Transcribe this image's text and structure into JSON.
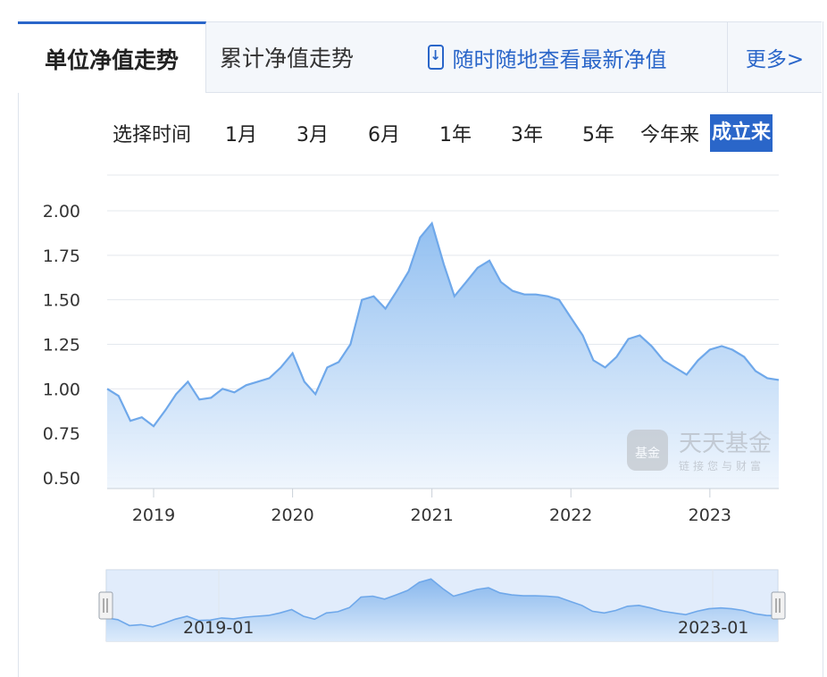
{
  "tabs": {
    "unit_nav": "单位净值走势",
    "cumulative_nav": "累计净值走势",
    "app_promo": "随时随地查看最新净值",
    "more": "更多>"
  },
  "time_range": {
    "label": "选择时间",
    "options": [
      "1月",
      "3月",
      "6月",
      "1年",
      "3年",
      "5年",
      "今年来",
      "成立来"
    ],
    "selected": "成立来"
  },
  "watermark": {
    "name": "天天基金",
    "slogan": "链接您与财富",
    "logo_text": "基金"
  },
  "colors": {
    "accent": "#2a66c9",
    "line": "#6fa8ea",
    "fill_top": "#8cbcf0",
    "fill_bottom": "#eef5fd",
    "grid": "#e4e8ee"
  },
  "chart_data": {
    "type": "area",
    "title": "",
    "xlabel": "",
    "ylabel": "",
    "ylim": [
      0.5,
      2.0
    ],
    "yticks": [
      "0.50",
      "0.75",
      "1.00",
      "1.25",
      "1.50",
      "1.75",
      "2.00"
    ],
    "xticks": [
      "2019",
      "2020",
      "2021",
      "2022",
      "2023"
    ],
    "grid": true,
    "legend": "none",
    "series": [
      {
        "values": [
          [
            "2018-09",
            1.0
          ],
          [
            "2018-10",
            0.96
          ],
          [
            "2018-11",
            0.82
          ],
          [
            "2018-12",
            0.84
          ],
          [
            "2019-01",
            0.79
          ],
          [
            "2019-02",
            0.88
          ],
          [
            "2019-03",
            0.97
          ],
          [
            "2019-04",
            1.04
          ],
          [
            "2019-05",
            0.94
          ],
          [
            "2019-06",
            0.95
          ],
          [
            "2019-07",
            1.0
          ],
          [
            "2019-08",
            0.98
          ],
          [
            "2019-09",
            1.02
          ],
          [
            "2019-10",
            1.04
          ],
          [
            "2019-11",
            1.06
          ],
          [
            "2019-12",
            1.12
          ],
          [
            "2020-01",
            1.2
          ],
          [
            "2020-02",
            1.04
          ],
          [
            "2020-03",
            0.97
          ],
          [
            "2020-04",
            1.12
          ],
          [
            "2020-05",
            1.15
          ],
          [
            "2020-06",
            1.25
          ],
          [
            "2020-07",
            1.5
          ],
          [
            "2020-08",
            1.52
          ],
          [
            "2020-09",
            1.45
          ],
          [
            "2020-10",
            1.55
          ],
          [
            "2020-11",
            1.66
          ],
          [
            "2020-12",
            1.85
          ],
          [
            "2021-01",
            1.93
          ],
          [
            "2021-02",
            1.7
          ],
          [
            "2021-03",
            1.52
          ],
          [
            "2021-04",
            1.6
          ],
          [
            "2021-05",
            1.68
          ],
          [
            "2021-06",
            1.72
          ],
          [
            "2021-07",
            1.6
          ],
          [
            "2021-08",
            1.55
          ],
          [
            "2021-09",
            1.53
          ],
          [
            "2021-10",
            1.53
          ],
          [
            "2021-11",
            1.52
          ],
          [
            "2021-12",
            1.5
          ],
          [
            "2022-01",
            1.4
          ],
          [
            "2022-02",
            1.3
          ],
          [
            "2022-03",
            1.16
          ],
          [
            "2022-04",
            1.12
          ],
          [
            "2022-05",
            1.18
          ],
          [
            "2022-06",
            1.28
          ],
          [
            "2022-07",
            1.3
          ],
          [
            "2022-08",
            1.24
          ],
          [
            "2022-09",
            1.16
          ],
          [
            "2022-10",
            1.12
          ],
          [
            "2022-11",
            1.08
          ],
          [
            "2022-12",
            1.16
          ],
          [
            "2023-01",
            1.22
          ],
          [
            "2023-02",
            1.24
          ],
          [
            "2023-03",
            1.22
          ],
          [
            "2023-04",
            1.18
          ],
          [
            "2023-05",
            1.1
          ],
          [
            "2023-06",
            1.06
          ],
          [
            "2023-07",
            1.05
          ]
        ]
      }
    ],
    "navigator": {
      "start_label": "2019-01",
      "end_label": "2023-01"
    }
  }
}
